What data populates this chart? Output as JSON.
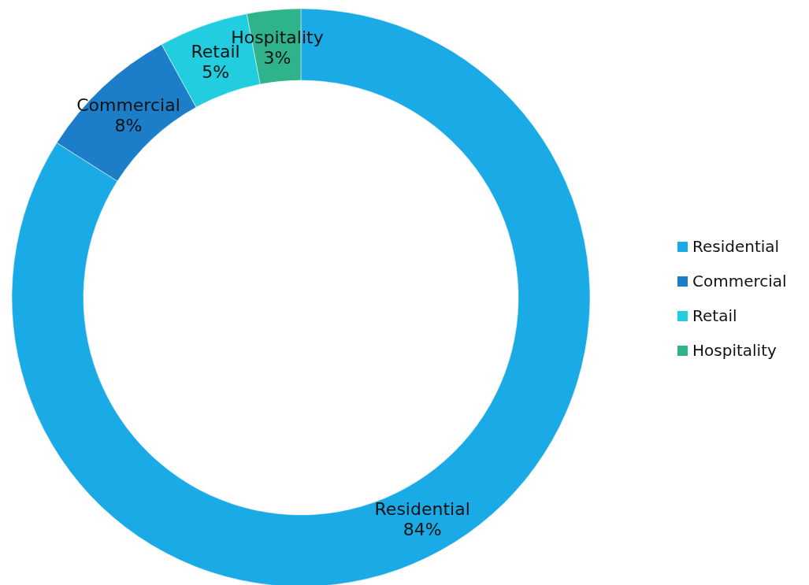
{
  "chart_data": {
    "type": "donut",
    "categories": [
      "Residential",
      "Commercial",
      "Retail",
      "Hospitality"
    ],
    "values": [
      84,
      8,
      5,
      3
    ],
    "colors": [
      "#1aabe6",
      "#1c7dc9",
      "#22cde0",
      "#2eb38b"
    ],
    "value_labels": [
      "84%",
      "8%",
      "5%",
      "3%"
    ],
    "legend": "right"
  }
}
